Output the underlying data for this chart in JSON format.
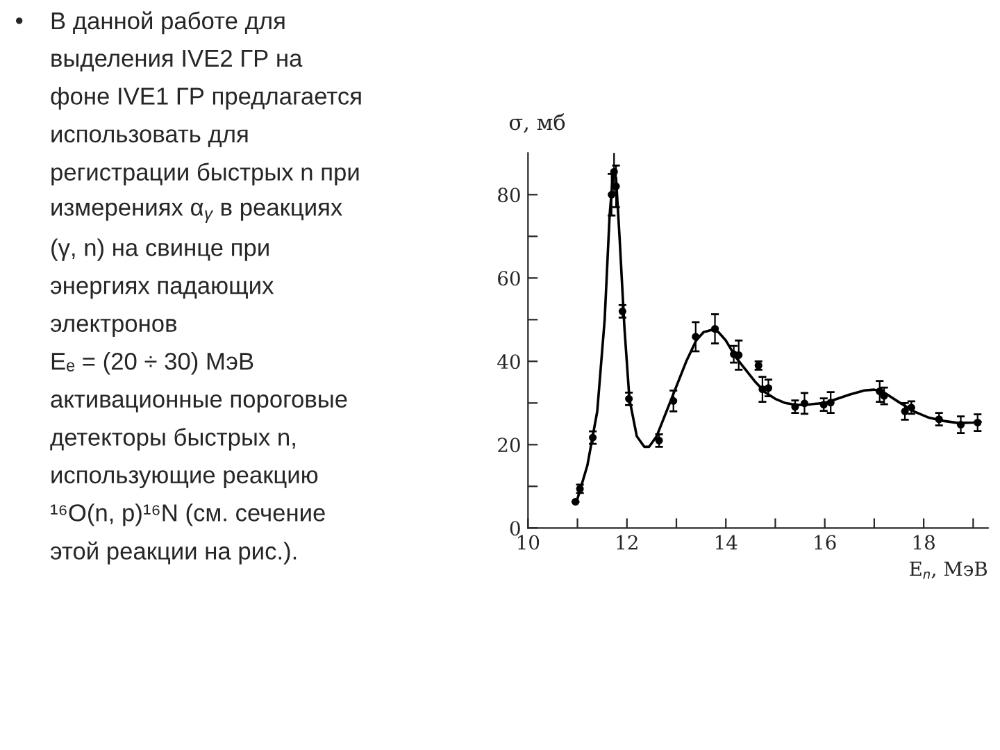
{
  "chart_data": {
    "type": "scatter",
    "xlabel": "E$_{n}$, МэВ",
    "ylabel": "σ, мб",
    "xlim": [
      10,
      19.3
    ],
    "ylim": [
      0,
      90
    ],
    "xticks": [
      10,
      {
        "value": 11,
        "label": null
      },
      12,
      {
        "value": 13,
        "label": null
      },
      14,
      {
        "value": 15,
        "label": null
      },
      16,
      {
        "value": 17,
        "label": null
      },
      18,
      {
        "value": 19,
        "label": null
      }
    ],
    "yticks": [
      0,
      {
        "value": 10,
        "label": null
      },
      20,
      {
        "value": 30,
        "label": null
      },
      40,
      {
        "value": 50,
        "label": null
      },
      60,
      {
        "value": 70,
        "label": null
      },
      80
    ],
    "grid": false,
    "legend": false,
    "series": [
      {
        "color": "#000000",
        "marker": "circle",
        "x": [
          10.96,
          11.05,
          11.31,
          11.69,
          11.74,
          11.78,
          11.91,
          12.04,
          12.65,
          12.94,
          13.39,
          13.78,
          14.16,
          14.26,
          14.66,
          14.74,
          14.86,
          15.4,
          15.59,
          15.98,
          16.12,
          17.11,
          17.2,
          17.62,
          17.75,
          18.31,
          18.75,
          19.09
        ],
        "values": [
          6.3,
          9.4,
          21.7,
          80,
          85.5,
          82,
          52,
          31,
          21,
          30.5,
          45.9,
          47.8,
          41.7,
          41.5,
          39,
          33.3,
          33.6,
          29.1,
          29.9,
          29.6,
          30.1,
          32.8,
          31.7,
          28,
          28.9,
          26.1,
          24.8,
          25.3
        ],
        "errors": [
          null,
          1,
          1.5,
          5,
          5,
          5,
          1.5,
          1.5,
          1.5,
          2.5,
          3.5,
          3.5,
          2,
          3.5,
          1,
          3,
          2,
          1.5,
          2.5,
          1.5,
          2.5,
          2.5,
          2,
          2,
          1.5,
          1.5,
          2,
          2
        ]
      },
      {
        "type": "line",
        "color": "#000000",
        "marker": "none",
        "line_style": "solid",
        "x": [
          11.0,
          11.2,
          11.4,
          11.55,
          11.65,
          11.72,
          11.78,
          11.85,
          11.95,
          12.05,
          12.2,
          12.35,
          12.45,
          12.6,
          12.8,
          13.0,
          13.2,
          13.4,
          13.55,
          13.7,
          13.85,
          14.0,
          14.2,
          14.4,
          14.6,
          14.8,
          15.0,
          15.2,
          15.4,
          15.6,
          15.8,
          16.0,
          16.2,
          16.5,
          16.8,
          17.0,
          17.2,
          17.5,
          17.8,
          18.1,
          18.4,
          18.7,
          19.0,
          19.15
        ],
        "values": [
          7,
          15,
          28,
          50,
          75,
          85,
          84,
          70,
          48,
          31,
          22,
          19.5,
          19.5,
          22,
          28,
          34,
          40,
          45,
          47,
          47.5,
          47,
          45,
          41,
          38,
          35,
          32.5,
          31,
          30,
          29.6,
          29.5,
          29.8,
          30,
          30.8,
          32,
          33,
          33.2,
          32.5,
          30.2,
          28,
          26.5,
          25.7,
          25.2,
          25.3,
          25.5
        ]
      }
    ],
    "annotations": [
      "•",
      "В данной работе для",
      "выделения IVE2 ГР на",
      "фоне IVE1 ГР предлагается",
      "использовать для",
      "регистрации быстрых n при",
      "измерениях α$_{γ}$ в реакциях",
      "(γ, n) на свинце при",
      "энергиях падающих",
      "электронов",
      "Eₑ = (20 ÷ 30) МэВ",
      "активационные пороговые",
      "детекторы быстрых n,",
      "использующие реакцию",
      "¹⁶O(n, p)¹⁶N (см. сечение",
      "этой реакции на рис.)."
    ]
  }
}
